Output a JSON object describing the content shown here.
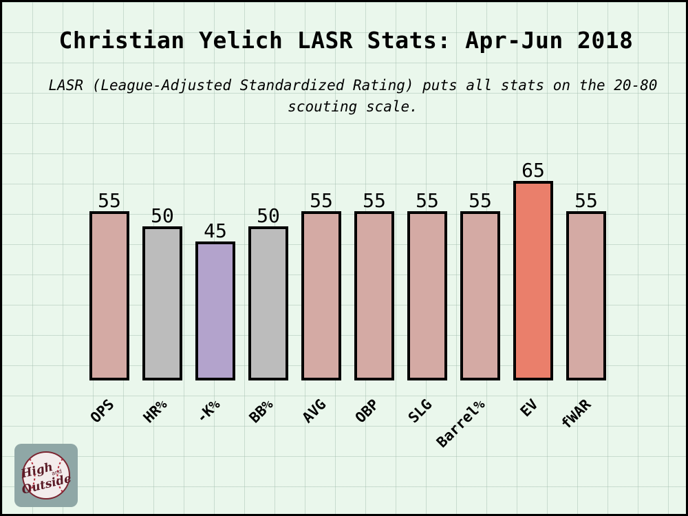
{
  "title": "Christian Yelich LASR Stats: Apr-Jun 2018",
  "subtitle": "LASR (League-Adjusted Standardized Rating) puts all stats on the 20-80 scouting scale.",
  "logo": {
    "line1": "High",
    "line2": "and",
    "line3": "Outside"
  },
  "chart_data": {
    "type": "bar",
    "title": "Christian Yelich LASR Stats: Apr-Jun 2018",
    "categories": [
      "OPS",
      "HR%",
      "-K%",
      "BB%",
      "AVG",
      "OBP",
      "SLG",
      "Barrel%",
      "EV",
      "fWAR"
    ],
    "values": [
      55,
      50,
      45,
      50,
      55,
      55,
      55,
      55,
      65,
      55
    ],
    "colors": [
      "#d4aaa4",
      "#bcbcbc",
      "#b3a3cc",
      "#bcbcbc",
      "#d4aaa4",
      "#d4aaa4",
      "#d4aaa4",
      "#d4aaa4",
      "#ea7f6b",
      "#d4aaa4"
    ],
    "ylim": [
      0,
      65
    ],
    "xlabel": "",
    "ylabel": "",
    "grid": true,
    "legend": "none"
  }
}
